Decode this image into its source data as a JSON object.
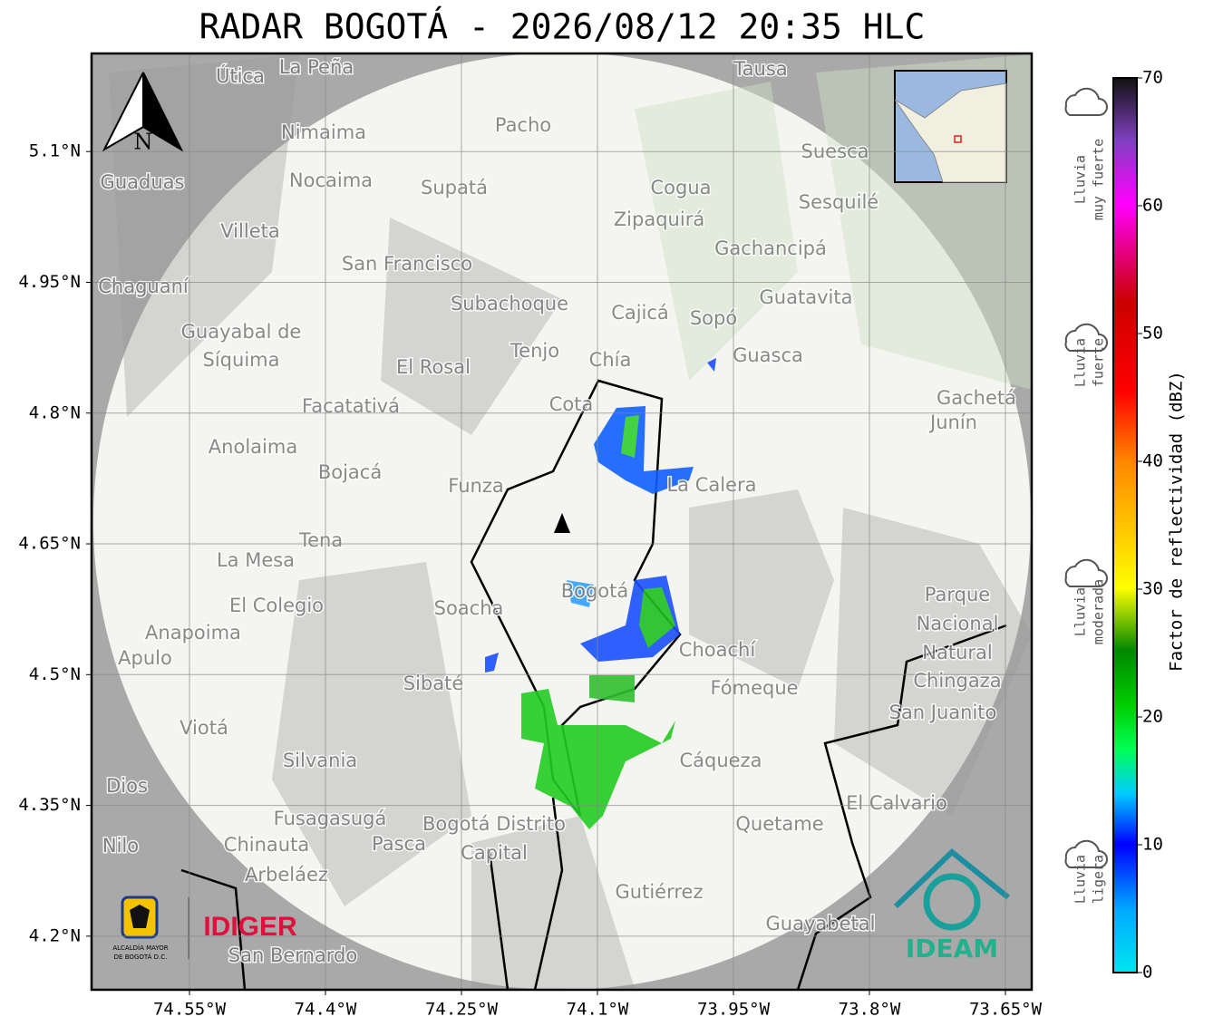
{
  "title": "RADAR BOGOTÁ - 2026/08/12 20:35 HLC",
  "map": {
    "xlim": [
      -74.658,
      -73.621
    ],
    "ylim": [
      4.1385,
      5.2125
    ],
    "xticks": [
      {
        "value": -74.55,
        "label": "74.55°W"
      },
      {
        "value": -74.4,
        "label": "74.4°W"
      },
      {
        "value": -74.25,
        "label": "74.25°W"
      },
      {
        "value": -74.1,
        "label": "74.1°W"
      },
      {
        "value": -73.95,
        "label": "73.95°W"
      },
      {
        "value": -73.8,
        "label": "73.8°W"
      },
      {
        "value": -73.65,
        "label": "73.65°W"
      }
    ],
    "yticks": [
      {
        "value": 5.1,
        "label": "5.1°N"
      },
      {
        "value": 4.95,
        "label": "4.95°N"
      },
      {
        "value": 4.8,
        "label": "4.8°N"
      },
      {
        "value": 4.65,
        "label": "4.65°N"
      },
      {
        "value": 4.5,
        "label": "4.5°N"
      },
      {
        "value": 4.35,
        "label": "4.35°N"
      },
      {
        "value": 4.2,
        "label": "4.2°N"
      }
    ],
    "north_label": "N",
    "places": [
      "La Peña",
      "Útica",
      "Tausa",
      "Pacho",
      "Nimaima",
      "Guaduas",
      "Nocaima",
      "Supatá",
      "Suesca",
      "Cogua",
      "Sesquilé",
      "Zipaquirá",
      "Villeta",
      "Gachancipá",
      "San Francisco",
      "Chaguaní",
      "Guatavita",
      "Subachoque",
      "Cajicá",
      "Sopó",
      "Guayabal de",
      "Síquima",
      "Tenjo",
      "Guasca",
      "El Rosal",
      "Chía",
      "Gachetá",
      "Junín",
      "Facatativá",
      "Cota",
      "Anolaima",
      "Bojacá",
      "Funza",
      "La Calera",
      "Tena",
      "La Mesa",
      "Soacha",
      "El Colegio",
      "Bogotá",
      "Parque",
      "Nacional",
      "Natural",
      "Chingaza",
      "Anapoima",
      "Apulo",
      "Choachí",
      "Sibaté",
      "Fómeque",
      "San Juanito",
      "Viotá",
      "Silvania",
      "Cáqueza",
      "El Calvario",
      "Dios",
      "Fusagasugá",
      "Bogotá Distrito",
      "Capital",
      "Quetame",
      "Nilo",
      "Chinauta",
      "Pasca",
      "Arbeláez",
      "Gutiérrez",
      "Guayabetal",
      "San Bernardo"
    ],
    "logos": {
      "idiger": "IDIGER",
      "ideam": "IDEAM",
      "alcaldia": [
        "ALCALDÍA MAYOR",
        "DE BOGOTÁ D.C."
      ]
    }
  },
  "colorbar": {
    "label": "Factor de reflectividad (dBZ)",
    "lim": [
      0,
      70
    ],
    "ticks": [
      0,
      10,
      20,
      30,
      40,
      50,
      60,
      70
    ],
    "categories": [
      [
        "Lluvia",
        "muy fuerte"
      ],
      [
        "Lluvia",
        "fuerte"
      ],
      [
        "Lluvia",
        "moderada"
      ],
      [
        "Lluvia",
        "ligera"
      ]
    ]
  }
}
